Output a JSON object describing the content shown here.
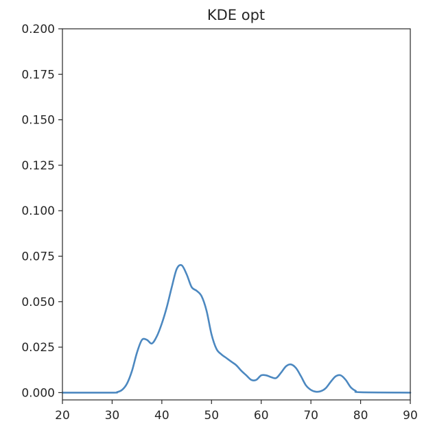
{
  "chart_data": {
    "type": "line",
    "title": "KDE opt",
    "xlabel": "",
    "ylabel": "",
    "xlim": [
      20,
      90
    ],
    "ylim": [
      -0.004,
      0.2
    ],
    "xticks": [
      20,
      30,
      40,
      50,
      60,
      70,
      80,
      90
    ],
    "yticks": [
      "0.000",
      "0.025",
      "0.050",
      "0.075",
      "0.100",
      "0.125",
      "0.150",
      "0.175",
      "0.200"
    ],
    "grid": false,
    "line_color": "#4c88c0",
    "series": [
      {
        "x": [
          20,
          30,
          31,
          32,
          33,
          34,
          35,
          36,
          37,
          38,
          39,
          40,
          41,
          42,
          43,
          44,
          45,
          46,
          47,
          48,
          49,
          50,
          51,
          52,
          53,
          54,
          55,
          56,
          57,
          58,
          59,
          60,
          61,
          62,
          63,
          64,
          65,
          66,
          67,
          68,
          69,
          70,
          71,
          72,
          73,
          74,
          75,
          76,
          77,
          78,
          79,
          80,
          90
        ],
        "y": [
          0.0,
          0.0,
          0.0003,
          0.0015,
          0.005,
          0.012,
          0.022,
          0.029,
          0.029,
          0.027,
          0.031,
          0.038,
          0.047,
          0.058,
          0.068,
          0.07,
          0.065,
          0.058,
          0.056,
          0.053,
          0.045,
          0.032,
          0.024,
          0.021,
          0.019,
          0.017,
          0.015,
          0.012,
          0.0095,
          0.007,
          0.007,
          0.0095,
          0.0095,
          0.0085,
          0.008,
          0.011,
          0.0145,
          0.0155,
          0.0135,
          0.009,
          0.004,
          0.0015,
          0.0005,
          0.0008,
          0.0025,
          0.006,
          0.009,
          0.0095,
          0.007,
          0.003,
          0.001,
          0.0002,
          0.0
        ]
      }
    ]
  }
}
